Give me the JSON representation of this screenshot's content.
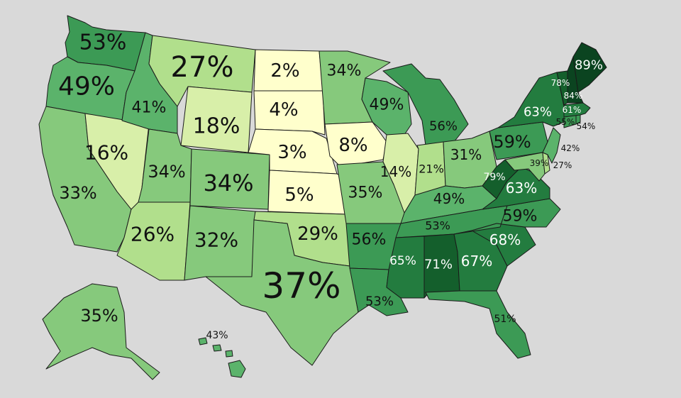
{
  "colors": {
    "background": "#d9d9d9",
    "scale": [
      "#ffffcc",
      "#d8efa9",
      "#b1df8c",
      "#86c97c",
      "#5bb36b",
      "#3c9a55",
      "#237c3f",
      "#145f2c",
      "#0b4420"
    ]
  },
  "states": [
    {
      "id": "WA",
      "value": "53%"
    },
    {
      "id": "OR",
      "value": "49%"
    },
    {
      "id": "CA",
      "value": "33%"
    },
    {
      "id": "NV",
      "value": "16%"
    },
    {
      "id": "ID",
      "value": "41%"
    },
    {
      "id": "MT",
      "value": "27%"
    },
    {
      "id": "WY",
      "value": "18%"
    },
    {
      "id": "UT",
      "value": "34%"
    },
    {
      "id": "AZ",
      "value": "26%"
    },
    {
      "id": "CO",
      "value": "34%"
    },
    {
      "id": "NM",
      "value": "32%"
    },
    {
      "id": "ND",
      "value": "2%"
    },
    {
      "id": "SD",
      "value": "4%"
    },
    {
      "id": "NE",
      "value": "3%"
    },
    {
      "id": "KS",
      "value": "5%"
    },
    {
      "id": "OK",
      "value": "29%"
    },
    {
      "id": "TX",
      "value": "37%"
    },
    {
      "id": "MN",
      "value": "34%"
    },
    {
      "id": "IA",
      "value": "8%"
    },
    {
      "id": "MO",
      "value": "35%"
    },
    {
      "id": "AR",
      "value": "56%"
    },
    {
      "id": "LA",
      "value": "53%"
    },
    {
      "id": "WI",
      "value": "49%"
    },
    {
      "id": "IL",
      "value": "14%"
    },
    {
      "id": "MI",
      "value": "56%"
    },
    {
      "id": "IN",
      "value": "21%"
    },
    {
      "id": "OH",
      "value": "31%"
    },
    {
      "id": "KY",
      "value": "49%"
    },
    {
      "id": "TN",
      "value": "53%"
    },
    {
      "id": "MS",
      "value": "65%"
    },
    {
      "id": "AL",
      "value": "71%"
    },
    {
      "id": "GA",
      "value": "67%"
    },
    {
      "id": "FL",
      "value": "51%"
    },
    {
      "id": "SC",
      "value": "68%"
    },
    {
      "id": "NC",
      "value": "59%"
    },
    {
      "id": "VA",
      "value": "63%"
    },
    {
      "id": "WV",
      "value": "79%"
    },
    {
      "id": "PA",
      "value": "59%"
    },
    {
      "id": "NY",
      "value": "63%"
    },
    {
      "id": "MD",
      "value": "39%"
    },
    {
      "id": "DE",
      "value": "27%"
    },
    {
      "id": "NJ",
      "value": "42%"
    },
    {
      "id": "CT",
      "value": "55%"
    },
    {
      "id": "RI",
      "value": "54%"
    },
    {
      "id": "MA",
      "value": "61%"
    },
    {
      "id": "VT",
      "value": "78%"
    },
    {
      "id": "NH",
      "value": "84%"
    },
    {
      "id": "ME",
      "value": "89%"
    },
    {
      "id": "AK",
      "value": "35%"
    },
    {
      "id": "HI",
      "value": "43%"
    }
  ]
}
